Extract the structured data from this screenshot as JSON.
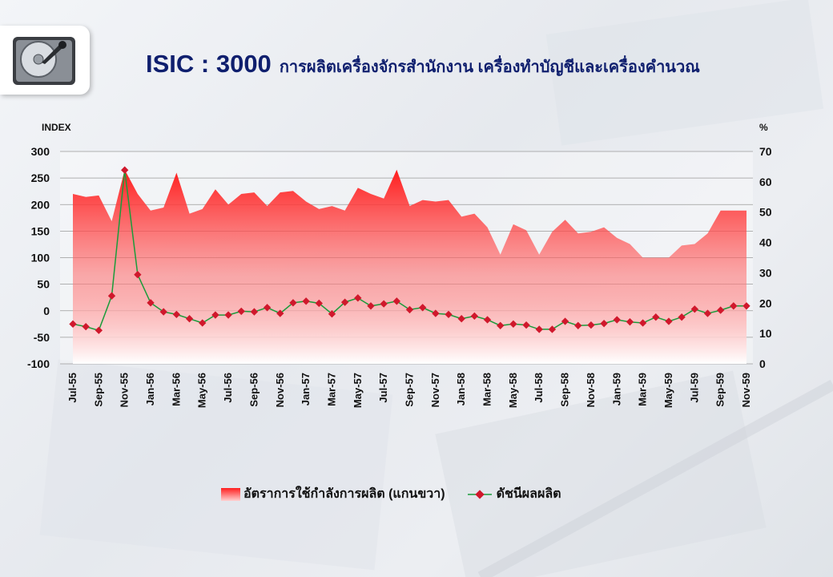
{
  "title": {
    "code": "ISIC : 3000",
    "name": "การผลิตเครื่องจักรสำนักงาน  เครื่องทำบัญชีและเครื่องคำนวณ"
  },
  "logo": {
    "icon": "hard-disk-icon"
  },
  "colors": {
    "title": "#0f1f6e",
    "area": "#ff1e1e",
    "line": "#1a9b3a",
    "marker": "#d0182c"
  },
  "chart_data": {
    "type": "line",
    "left_axis": {
      "label": "INDEX",
      "ylim": [
        -100,
        300
      ],
      "ticks": [
        300,
        250,
        200,
        150,
        100,
        50,
        0,
        -50,
        -100
      ]
    },
    "right_axis": {
      "label": "%",
      "ylim": [
        0,
        70
      ],
      "ticks": [
        70,
        60,
        50,
        40,
        30,
        20,
        10,
        0
      ]
    },
    "x": [
      "Jul-55",
      "Aug-55",
      "Sep-55",
      "Oct-55",
      "Nov-55",
      "Dec-55",
      "Jan-56",
      "Feb-56",
      "Mar-56",
      "Apr-56",
      "May-56",
      "Jun-56",
      "Jul-56",
      "Aug-56",
      "Sep-56",
      "Oct-56",
      "Nov-56",
      "Dec-56",
      "Jan-57",
      "Feb-57",
      "Mar-57",
      "Apr-57",
      "May-57",
      "Jun-57",
      "Jul-57",
      "Aug-57",
      "Sep-57",
      "Oct-57",
      "Nov-57",
      "Dec-57",
      "Jan-58",
      "Feb-58",
      "Mar-58",
      "Apr-58",
      "May-58",
      "Jun-58",
      "Jul-58",
      "Aug-58",
      "Sep-58",
      "Oct-58",
      "Nov-58",
      "Dec-58",
      "Jan-59",
      "Feb-59",
      "Mar-59",
      "Apr-59",
      "May-59",
      "Jun-59",
      "Jul-59",
      "Aug-59",
      "Sep-59",
      "Oct-59",
      "Nov-59"
    ],
    "x_tick_labels": [
      "Jul-55",
      "Sep-55",
      "Nov-55",
      "Jan-56",
      "Mar-56",
      "May-56",
      "Jul-56",
      "Sep-56",
      "Nov-56",
      "Jan-57",
      "Mar-57",
      "May-57",
      "Jul-57",
      "Sep-57",
      "Nov-57",
      "Jan-58",
      "Mar-58",
      "May-58",
      "Jul-58",
      "Sep-58",
      "Nov-58",
      "Jan-59",
      "Mar-59",
      "May-59",
      "Jul-59",
      "Sep-59",
      "Nov-59"
    ],
    "series": [
      {
        "name": "อัตราการใช้กำลังการผลิต (แกนขวา)",
        "type": "area",
        "axis": "right",
        "values": [
          56,
          55,
          55.5,
          47,
          64,
          56,
          50.5,
          51.5,
          63,
          49.5,
          51,
          57.5,
          52.5,
          56,
          56.5,
          52,
          56.5,
          57,
          53.5,
          51,
          52,
          50.5,
          58,
          56,
          54.5,
          64,
          52,
          54,
          53.5,
          54,
          48.5,
          49.5,
          45,
          36,
          46,
          44,
          36,
          43.5,
          47.5,
          43,
          43.5,
          45,
          41.5,
          39.5,
          35,
          35,
          35,
          39,
          39.5,
          43,
          50.5,
          50.5,
          50.5
        ]
      },
      {
        "name": "ดัชนีผลผลิต",
        "type": "line",
        "axis": "left",
        "values": [
          -25,
          -30,
          -37,
          28,
          265,
          68,
          15,
          -2,
          -7,
          -15,
          -23,
          -8,
          -8,
          -1,
          -2,
          6,
          -5,
          15,
          18,
          14,
          -6,
          16,
          24,
          9,
          13,
          18,
          2,
          6,
          -5,
          -7,
          -15,
          -10,
          -17,
          -28,
          -25,
          -27,
          -35,
          -35,
          -20,
          -28,
          -27,
          -24,
          -17,
          -21,
          -23,
          -12,
          -20,
          -12,
          3,
          -5,
          1,
          9,
          9
        ]
      }
    ],
    "legend": "bottom",
    "grid": true
  }
}
